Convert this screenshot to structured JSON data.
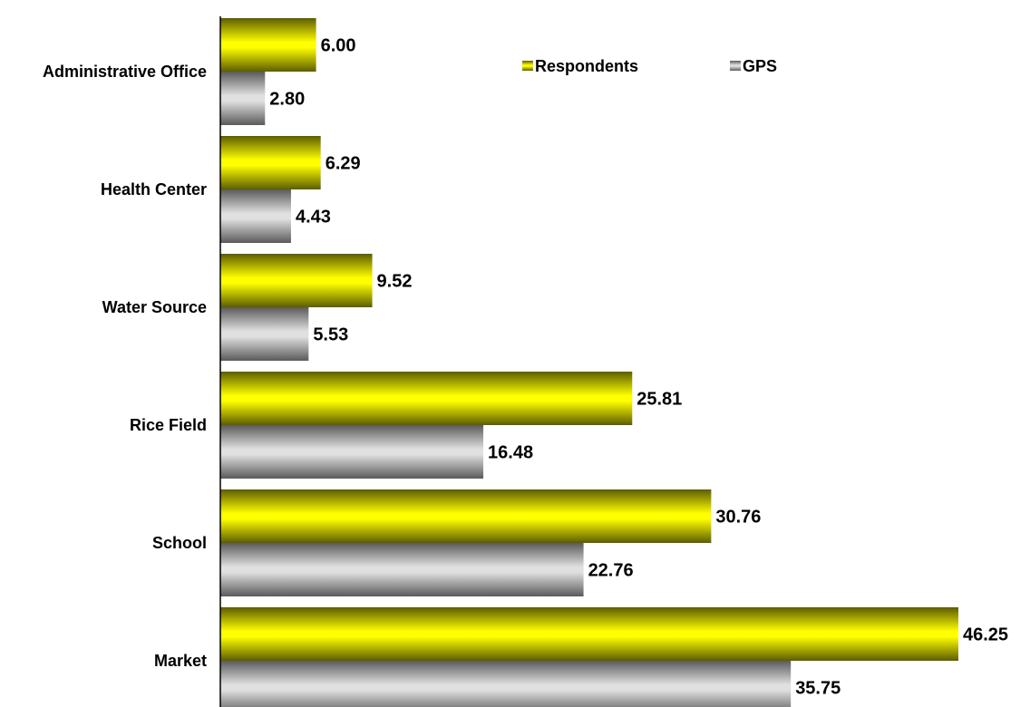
{
  "chart_data": {
    "type": "bar",
    "orientation": "horizontal",
    "categories": [
      "Administrative Office",
      "Health Center",
      "Water Source",
      "Rice Field",
      "School",
      "Market"
    ],
    "series": [
      {
        "name": "Respondents",
        "values": [
          6.0,
          6.29,
          9.52,
          25.81,
          30.76,
          46.25
        ],
        "color": "#e6e600"
      },
      {
        "name": "GPS",
        "values": [
          2.8,
          4.43,
          5.53,
          16.48,
          22.76,
          35.75
        ],
        "color": "#a6a6a6"
      }
    ],
    "value_labels": {
      "Respondents": [
        "6.00",
        "6.29",
        "9.52",
        "25.81",
        "30.76",
        "46.25"
      ],
      "GPS": [
        "2.80",
        "4.43",
        "5.53",
        "16.48",
        "22.76",
        "35.75"
      ]
    },
    "xlim": [
      0,
      46.25
    ],
    "grid": false,
    "legend_position": "top"
  }
}
